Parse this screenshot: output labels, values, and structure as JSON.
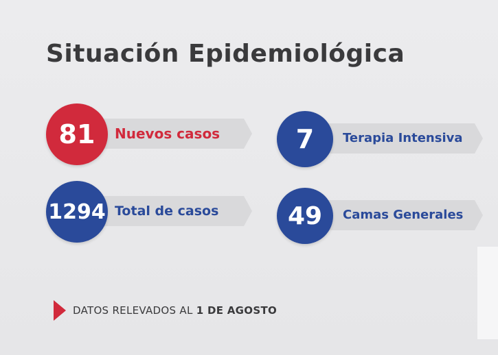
{
  "title": "Situación Epidemiológica",
  "stats": {
    "new_cases": {
      "value": "81",
      "label": "Nuevos casos"
    },
    "intensive_care": {
      "value": "7",
      "label": "Terapia Intensiva"
    },
    "total_cases": {
      "value": "1294",
      "label": "Total de casos"
    },
    "general_beds": {
      "value": "49",
      "label": "Camas Generales"
    }
  },
  "footer": {
    "prefix": "DATOS RELEVADOS AL ",
    "date": "1 DE AGOSTO"
  },
  "colors": {
    "red": "#d12a3c",
    "blue": "#2a4a9a",
    "text_dark": "#3a3a3c",
    "band": "#d9d9db"
  },
  "icons": {
    "footer_marker": "triangle-right-icon"
  }
}
